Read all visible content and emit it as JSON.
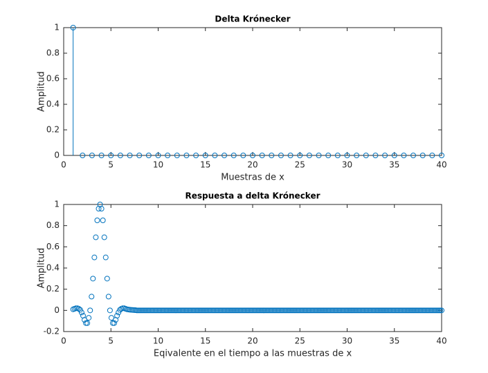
{
  "chart_data": [
    {
      "type": "stem",
      "title": "Delta Krónecker",
      "xlabel": "Muestras de x",
      "ylabel": "Amplitud",
      "color": "#0072bd",
      "x": [
        1,
        2,
        3,
        4,
        5,
        6,
        7,
        8,
        9,
        10,
        11,
        12,
        13,
        14,
        15,
        16,
        17,
        18,
        19,
        20,
        21,
        22,
        23,
        24,
        25,
        26,
        27,
        28,
        29,
        30,
        31,
        32,
        33,
        34,
        35,
        36,
        37,
        38,
        39,
        40
      ],
      "values": [
        1,
        0,
        0,
        0,
        0,
        0,
        0,
        0,
        0,
        0,
        0,
        0,
        0,
        0,
        0,
        0,
        0,
        0,
        0,
        0,
        0,
        0,
        0,
        0,
        0,
        0,
        0,
        0,
        0,
        0,
        0,
        0,
        0,
        0,
        0,
        0,
        0,
        0,
        0,
        0
      ],
      "xlim": [
        0,
        40
      ],
      "xticks": [
        0,
        5,
        10,
        15,
        20,
        25,
        30,
        35,
        40
      ],
      "ylim": [
        0,
        1
      ],
      "yticks": [
        0,
        0.2,
        0.4,
        0.6,
        0.8,
        1
      ]
    },
    {
      "type": "scatter",
      "title": "Respuesta a delta Krónecker",
      "xlabel": "Eqivalente en el tiempo a las muestras de x",
      "ylabel": "Amplitud",
      "color": "#0072bd",
      "x": [
        1,
        1.15,
        1.3,
        1.45,
        1.6,
        1.75,
        1.9,
        2.05,
        2.2,
        2.35,
        2.5,
        2.65,
        2.8,
        2.95,
        3.1,
        3.25,
        3.4,
        3.55,
        3.7,
        3.85,
        4,
        4.15,
        4.3,
        4.45,
        4.6,
        4.75,
        4.9,
        5.05,
        5.2,
        5.35,
        5.5,
        5.65,
        5.8,
        5.95,
        6.1,
        6.25,
        6.4,
        6.55,
        6.7,
        6.85,
        7,
        7.15,
        7.3,
        7.45,
        7.6,
        7.75,
        7.9,
        8.05,
        8.2,
        8.35,
        8.5,
        8.65,
        8.8,
        8.95,
        9.1,
        9.25,
        9.4,
        9.55,
        9.7,
        9.85,
        10,
        10.15,
        10.3,
        10.45,
        10.6,
        10.75,
        10.9,
        11.05,
        11.2,
        11.35,
        11.5,
        11.65,
        11.8,
        11.95,
        12.1,
        12.25,
        12.4,
        12.55,
        12.7,
        12.85,
        13,
        13.15,
        13.3,
        13.45,
        13.6,
        13.75,
        13.9,
        14.05,
        14.2,
        14.35,
        14.5,
        14.65,
        14.8,
        14.95,
        15.1,
        15.25,
        15.4,
        15.55,
        15.7,
        15.85,
        16,
        16.15,
        16.3,
        16.45,
        16.6,
        16.75,
        16.9,
        17.05,
        17.2,
        17.35,
        17.5,
        17.65,
        17.8,
        17.95,
        18.1,
        18.25,
        18.4,
        18.55,
        18.7,
        18.85,
        19,
        19.15,
        19.3,
        19.45,
        19.6,
        19.75,
        19.9,
        20.05,
        20.2,
        20.35,
        20.5,
        20.65,
        20.8,
        20.95,
        21.1,
        21.25,
        21.4,
        21.55,
        21.7,
        21.85,
        22,
        22.15,
        22.3,
        22.45,
        22.6,
        22.75,
        22.9,
        23.05,
        23.2,
        23.35,
        23.5,
        23.65,
        23.8,
        23.95,
        24.1,
        24.25,
        24.4,
        24.55,
        24.7,
        24.85,
        25,
        25.15,
        25.3,
        25.45,
        25.6,
        25.75,
        25.9,
        26.05,
        26.2,
        26.35,
        26.5,
        26.65,
        26.8,
        26.95,
        27.1,
        27.25,
        27.4,
        27.55,
        27.7,
        27.85,
        28,
        28.15,
        28.3,
        28.45,
        28.6,
        28.75,
        28.9,
        29.05,
        29.2,
        29.35,
        29.5,
        29.65,
        29.8,
        29.95,
        30.1,
        30.25,
        30.4,
        30.55,
        30.7,
        30.85,
        31,
        31.15,
        31.3,
        31.45,
        31.6,
        31.75,
        31.9,
        32.05,
        32.2,
        32.35,
        32.5,
        32.65,
        32.8,
        32.95,
        33.1,
        33.25,
        33.4,
        33.55,
        33.7,
        33.85,
        34,
        34.15,
        34.3,
        34.45,
        34.6,
        34.75,
        34.9,
        35.05,
        35.2,
        35.35,
        35.5,
        35.65,
        35.8,
        35.95,
        36.1,
        36.25,
        36.4,
        36.55,
        36.7,
        36.85,
        37,
        37.15,
        37.3,
        37.45,
        37.6,
        37.75,
        37.9,
        38.05,
        38.2,
        38.35,
        38.5,
        38.65,
        38.8,
        38.95,
        39.1,
        39.25,
        39.4,
        39.55,
        39.7,
        39.85,
        40
      ],
      "values": [
        0.01,
        0.015,
        0.02,
        0.02,
        0.015,
        0.005,
        -0.02,
        -0.05,
        -0.09,
        -0.12,
        -0.12,
        -0.07,
        0,
        0.13,
        0.3,
        0.5,
        0.69,
        0.85,
        0.96,
        1,
        0.96,
        0.85,
        0.69,
        0.5,
        0.3,
        0.13,
        0,
        -0.07,
        -0.12,
        -0.12,
        -0.09,
        -0.05,
        -0.02,
        0.005,
        0.015,
        0.02,
        0.02,
        0.015,
        0.01,
        0.008,
        0.006,
        0.005,
        0.004,
        0.003,
        0.002,
        0,
        0,
        0,
        0,
        0,
        0,
        0,
        0,
        0,
        0,
        0,
        0,
        0,
        0,
        0,
        0,
        0,
        0,
        0,
        0,
        0,
        0,
        0,
        0,
        0,
        0,
        0,
        0,
        0,
        0,
        0,
        0,
        0,
        0,
        0,
        0,
        0,
        0,
        0,
        0,
        0,
        0,
        0,
        0,
        0,
        0,
        0,
        0,
        0,
        0,
        0,
        0,
        0,
        0,
        0,
        0,
        0,
        0,
        0,
        0,
        0,
        0,
        0,
        0,
        0,
        0,
        0,
        0,
        0,
        0,
        0,
        0,
        0,
        0,
        0,
        0,
        0,
        0,
        0,
        0,
        0,
        0,
        0,
        0,
        0,
        0,
        0,
        0,
        0,
        0,
        0,
        0,
        0,
        0,
        0,
        0,
        0,
        0,
        0,
        0,
        0,
        0,
        0,
        0,
        0,
        0,
        0,
        0,
        0,
        0,
        0,
        0,
        0,
        0,
        0,
        0,
        0,
        0,
        0,
        0,
        0,
        0,
        0,
        0,
        0,
        0,
        0,
        0,
        0,
        0,
        0,
        0,
        0,
        0,
        0,
        0,
        0,
        0,
        0,
        0,
        0,
        0,
        0,
        0,
        0,
        0,
        0,
        0,
        0,
        0,
        0,
        0,
        0,
        0,
        0,
        0,
        0,
        0,
        0,
        0,
        0,
        0,
        0,
        0,
        0,
        0,
        0,
        0,
        0,
        0,
        0,
        0,
        0,
        0,
        0,
        0,
        0,
        0,
        0,
        0,
        0,
        0,
        0,
        0,
        0,
        0,
        0,
        0,
        0,
        0,
        0,
        0,
        0,
        0,
        0,
        0,
        0,
        0,
        0,
        0,
        0,
        0,
        0,
        0,
        0,
        0,
        0,
        0,
        0,
        0,
        0,
        0,
        0,
        0,
        0,
        0
      ],
      "xlim": [
        0,
        40
      ],
      "xticks": [
        0,
        5,
        10,
        15,
        20,
        25,
        30,
        35,
        40
      ],
      "ylim": [
        -0.2,
        1
      ],
      "yticks": [
        -0.2,
        0,
        0.2,
        0.4,
        0.6,
        0.8,
        1
      ]
    }
  ]
}
